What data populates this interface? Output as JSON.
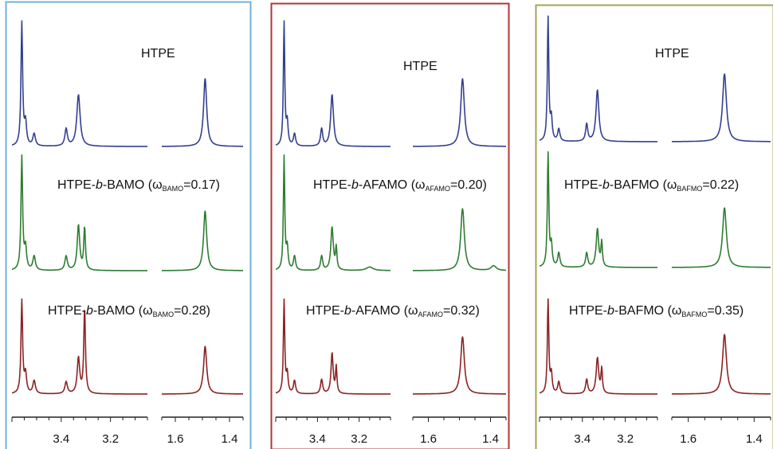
{
  "chart_data": [
    {
      "type": "line",
      "panel_color": "#6fb0dc",
      "x_axis": {
        "segments": [
          {
            "xlim": [
              3.6,
              3.05
            ],
            "ticks": [
              "3.4",
              "3.2"
            ]
          },
          {
            "xlim": [
              1.65,
              1.35
            ],
            "ticks": [
              "1.6",
              "1.4"
            ]
          }
        ]
      },
      "series": [
        {
          "label_parts": [
            "HTPE"
          ],
          "color": "#33408f",
          "peaks": [
            {
              "ppm": 3.56,
              "h": 1.0,
              "w": 0.004
            },
            {
              "ppm": 3.545,
              "h": 0.18,
              "w": 0.005
            },
            {
              "ppm": 3.51,
              "h": 0.1,
              "w": 0.006
            },
            {
              "ppm": 3.38,
              "h": 0.14,
              "w": 0.006
            },
            {
              "ppm": 3.33,
              "h": 0.42,
              "w": 0.008
            },
            {
              "ppm": 1.49,
              "h": 0.55,
              "w": 0.007
            }
          ]
        },
        {
          "label_parts": [
            "HTPE-",
            "b",
            "-BAMO (",
            "ω",
            "BAMO",
            "=0.17)"
          ],
          "color": "#2e7d32",
          "peaks": [
            {
              "ppm": 3.56,
              "h": 0.95,
              "w": 0.004
            },
            {
              "ppm": 3.545,
              "h": 0.18,
              "w": 0.005
            },
            {
              "ppm": 3.51,
              "h": 0.12,
              "w": 0.006
            },
            {
              "ppm": 3.38,
              "h": 0.12,
              "w": 0.006
            },
            {
              "ppm": 3.33,
              "h": 0.38,
              "w": 0.006
            },
            {
              "ppm": 3.305,
              "h": 0.36,
              "w": 0.004
            },
            {
              "ppm": 1.49,
              "h": 0.5,
              "w": 0.007
            }
          ]
        },
        {
          "label_parts": [
            "HTPE-",
            "b",
            "-BAMO (",
            "ω",
            "BAMO",
            "=0.28)"
          ],
          "color": "#8b2323",
          "peaks": [
            {
              "ppm": 3.56,
              "h": 0.78,
              "w": 0.004
            },
            {
              "ppm": 3.545,
              "h": 0.16,
              "w": 0.005
            },
            {
              "ppm": 3.51,
              "h": 0.11,
              "w": 0.006
            },
            {
              "ppm": 3.38,
              "h": 0.1,
              "w": 0.006
            },
            {
              "ppm": 3.33,
              "h": 0.3,
              "w": 0.006
            },
            {
              "ppm": 3.305,
              "h": 0.72,
              "w": 0.004
            },
            {
              "ppm": 1.49,
              "h": 0.4,
              "w": 0.007
            }
          ]
        }
      ]
    },
    {
      "type": "line",
      "panel_color": "#b03636",
      "x_axis": {
        "segments": [
          {
            "xlim": [
              3.6,
              3.05
            ],
            "ticks": [
              "3.4",
              "3.2"
            ]
          },
          {
            "xlim": [
              1.65,
              1.35
            ],
            "ticks": [
              "1.6",
              "1.4"
            ]
          }
        ]
      },
      "series": [
        {
          "label_parts": [
            "HTPE"
          ],
          "color": "#33408f",
          "peaks": [
            {
              "ppm": 3.56,
              "h": 1.0,
              "w": 0.004
            },
            {
              "ppm": 3.545,
              "h": 0.18,
              "w": 0.005
            },
            {
              "ppm": 3.51,
              "h": 0.1,
              "w": 0.006
            },
            {
              "ppm": 3.38,
              "h": 0.14,
              "w": 0.006
            },
            {
              "ppm": 3.33,
              "h": 0.42,
              "w": 0.008
            },
            {
              "ppm": 1.49,
              "h": 0.55,
              "w": 0.007
            }
          ]
        },
        {
          "label_parts": [
            "HTPE-",
            "b",
            "-AFAMO (",
            "ω",
            "AFAMO",
            "=0.20)"
          ],
          "color": "#2e7d32",
          "peaks": [
            {
              "ppm": 3.56,
              "h": 0.95,
              "w": 0.004
            },
            {
              "ppm": 3.545,
              "h": 0.18,
              "w": 0.005
            },
            {
              "ppm": 3.51,
              "h": 0.12,
              "w": 0.006
            },
            {
              "ppm": 3.38,
              "h": 0.12,
              "w": 0.006
            },
            {
              "ppm": 3.33,
              "h": 0.36,
              "w": 0.007
            },
            {
              "ppm": 3.31,
              "h": 0.18,
              "w": 0.004
            },
            {
              "ppm": 3.15,
              "h": 0.03,
              "w": 0.02
            },
            {
              "ppm": 1.49,
              "h": 0.52,
              "w": 0.007
            },
            {
              "ppm": 1.39,
              "h": 0.04,
              "w": 0.01
            }
          ]
        },
        {
          "label_parts": [
            "HTPE-",
            "b",
            "-AFAMO (",
            "ω",
            "AFAMO",
            "=0.32)"
          ],
          "color": "#8b2323",
          "peaks": [
            {
              "ppm": 3.56,
              "h": 0.78,
              "w": 0.004
            },
            {
              "ppm": 3.545,
              "h": 0.16,
              "w": 0.005
            },
            {
              "ppm": 3.51,
              "h": 0.11,
              "w": 0.006
            },
            {
              "ppm": 3.38,
              "h": 0.12,
              "w": 0.006
            },
            {
              "ppm": 3.33,
              "h": 0.34,
              "w": 0.006
            },
            {
              "ppm": 3.31,
              "h": 0.22,
              "w": 0.004
            },
            {
              "ppm": 1.49,
              "h": 0.48,
              "w": 0.007
            }
          ]
        }
      ]
    },
    {
      "type": "line",
      "panel_color": "#a5a55a",
      "x_axis": {
        "segments": [
          {
            "xlim": [
              3.6,
              3.05
            ],
            "ticks": [
              "3.4",
              "3.2"
            ]
          },
          {
            "xlim": [
              1.65,
              1.35
            ],
            "ticks": [
              "1.6",
              "1.4"
            ]
          }
        ]
      },
      "series": [
        {
          "label_parts": [
            "HTPE"
          ],
          "color": "#33408f",
          "peaks": [
            {
              "ppm": 3.56,
              "h": 1.0,
              "w": 0.004
            },
            {
              "ppm": 3.545,
              "h": 0.18,
              "w": 0.005
            },
            {
              "ppm": 3.51,
              "h": 0.1,
              "w": 0.006
            },
            {
              "ppm": 3.38,
              "h": 0.14,
              "w": 0.006
            },
            {
              "ppm": 3.33,
              "h": 0.42,
              "w": 0.008
            },
            {
              "ppm": 1.49,
              "h": 0.55,
              "w": 0.007
            }
          ]
        },
        {
          "label_parts": [
            "HTPE-",
            "b",
            "-BAFMO (",
            "ω",
            "BAFMO",
            "=0.22)"
          ],
          "color": "#2e7d32",
          "peaks": [
            {
              "ppm": 3.56,
              "h": 0.95,
              "w": 0.004
            },
            {
              "ppm": 3.545,
              "h": 0.18,
              "w": 0.005
            },
            {
              "ppm": 3.51,
              "h": 0.12,
              "w": 0.006
            },
            {
              "ppm": 3.38,
              "h": 0.12,
              "w": 0.006
            },
            {
              "ppm": 3.33,
              "h": 0.32,
              "w": 0.007
            },
            {
              "ppm": 3.31,
              "h": 0.2,
              "w": 0.004
            },
            {
              "ppm": 1.49,
              "h": 0.5,
              "w": 0.007
            }
          ]
        },
        {
          "label_parts": [
            "HTPE-",
            "b",
            "-BAFMO (",
            "ω",
            "BAFMO",
            "=0.35)"
          ],
          "color": "#8b2323",
          "peaks": [
            {
              "ppm": 3.56,
              "h": 0.78,
              "w": 0.004
            },
            {
              "ppm": 3.545,
              "h": 0.16,
              "w": 0.005
            },
            {
              "ppm": 3.51,
              "h": 0.1,
              "w": 0.006
            },
            {
              "ppm": 3.38,
              "h": 0.12,
              "w": 0.006
            },
            {
              "ppm": 3.33,
              "h": 0.3,
              "w": 0.007
            },
            {
              "ppm": 3.31,
              "h": 0.2,
              "w": 0.004
            },
            {
              "ppm": 1.49,
              "h": 0.5,
              "w": 0.007
            }
          ]
        }
      ]
    }
  ]
}
